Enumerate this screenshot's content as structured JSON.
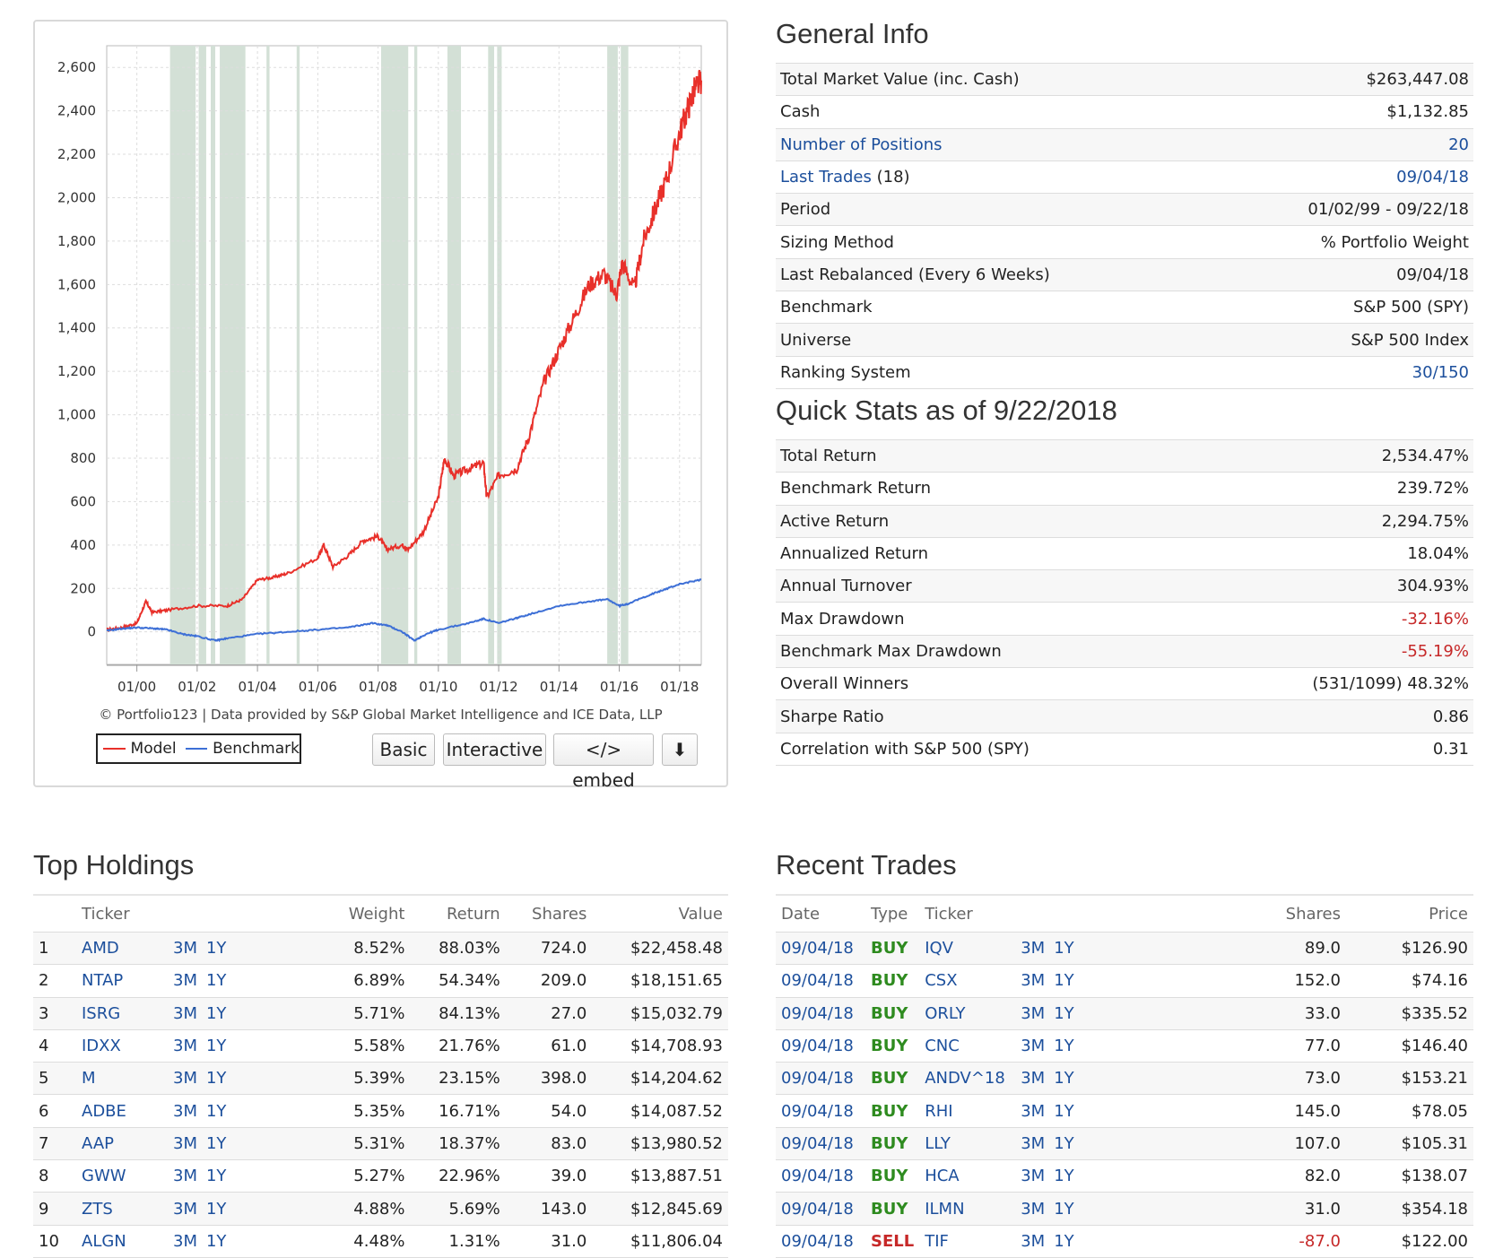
{
  "chart": {
    "copyright": "© Portfolio123 | Data provided by S&P Global Market Intelligence and ICE Data, LLP",
    "legend": {
      "model_label": "Model",
      "benchmark_label": "Benchmark"
    },
    "buttons": {
      "basic": "Basic",
      "interactive": "Interactive",
      "embed": "</> embed",
      "download": "⬇"
    },
    "colors": {
      "model": "#e8302a",
      "benchmark": "#3d6fd6",
      "shade": "#d3e0d6"
    }
  },
  "chart_data": {
    "type": "line",
    "y_ticks": [
      "2,600",
      "2,400",
      "2,200",
      "2,000",
      "1,800",
      "1,600",
      "1,400",
      "1,200",
      "1,000",
      "800",
      "600",
      "400",
      "200",
      "0"
    ],
    "x_ticks": [
      "01/00",
      "01/02",
      "01/04",
      "01/06",
      "01/08",
      "01/10",
      "01/12",
      "01/14",
      "01/16",
      "01/18"
    ],
    "ylim": [
      -150,
      2700
    ],
    "xlim": [
      1999.0,
      2018.72
    ],
    "shaded_periods": [
      [
        2001.1,
        2001.95
      ],
      [
        2002.05,
        2002.3
      ],
      [
        2002.45,
        2002.6
      ],
      [
        2002.75,
        2003.6
      ],
      [
        2004.3,
        2004.4
      ],
      [
        2005.3,
        2005.4
      ],
      [
        2008.1,
        2009.0
      ],
      [
        2009.2,
        2009.3
      ],
      [
        2010.3,
        2010.75
      ],
      [
        2011.65,
        2011.85
      ],
      [
        2011.95,
        2012.1
      ],
      [
        2015.6,
        2015.95
      ],
      [
        2016.05,
        2016.3
      ]
    ],
    "series": [
      {
        "name": "Model",
        "points": [
          [
            1999.0,
            10
          ],
          [
            1999.5,
            20
          ],
          [
            2000.0,
            40
          ],
          [
            2000.3,
            140
          ],
          [
            2000.5,
            90
          ],
          [
            2001.0,
            100
          ],
          [
            2002.0,
            120
          ],
          [
            2003.0,
            120
          ],
          [
            2003.5,
            150
          ],
          [
            2004.0,
            240
          ],
          [
            2004.5,
            250
          ],
          [
            2005.0,
            270
          ],
          [
            2006.0,
            340
          ],
          [
            2006.2,
            400
          ],
          [
            2006.5,
            300
          ],
          [
            2007.0,
            350
          ],
          [
            2007.5,
            420
          ],
          [
            2008.0,
            440
          ],
          [
            2008.3,
            380
          ],
          [
            2008.8,
            400
          ],
          [
            2009.0,
            380
          ],
          [
            2009.5,
            460
          ],
          [
            2010.0,
            620
          ],
          [
            2010.2,
            800
          ],
          [
            2010.5,
            720
          ],
          [
            2011.0,
            750
          ],
          [
            2011.5,
            780
          ],
          [
            2011.6,
            620
          ],
          [
            2012.0,
            720
          ],
          [
            2012.6,
            750
          ],
          [
            2013.0,
            900
          ],
          [
            2013.5,
            1150
          ],
          [
            2014.0,
            1300
          ],
          [
            2014.5,
            1450
          ],
          [
            2015.0,
            1600
          ],
          [
            2015.5,
            1650
          ],
          [
            2015.9,
            1550
          ],
          [
            2016.1,
            1700
          ],
          [
            2016.5,
            1580
          ],
          [
            2016.8,
            1800
          ],
          [
            2017.2,
            1950
          ],
          [
            2017.6,
            2100
          ],
          [
            2018.0,
            2300
          ],
          [
            2018.3,
            2420
          ],
          [
            2018.5,
            2500
          ],
          [
            2018.72,
            2540
          ]
        ]
      },
      {
        "name": "Benchmark",
        "points": [
          [
            1999.0,
            5
          ],
          [
            1999.5,
            15
          ],
          [
            2000.0,
            20
          ],
          [
            2000.6,
            15
          ],
          [
            2001.0,
            10
          ],
          [
            2001.5,
            -10
          ],
          [
            2002.0,
            -20
          ],
          [
            2002.6,
            -40
          ],
          [
            2003.0,
            -30
          ],
          [
            2004.0,
            -10
          ],
          [
            2005.0,
            0
          ],
          [
            2006.0,
            10
          ],
          [
            2007.0,
            20
          ],
          [
            2007.8,
            40
          ],
          [
            2008.3,
            30
          ],
          [
            2008.8,
            0
          ],
          [
            2009.2,
            -40
          ],
          [
            2009.6,
            -10
          ],
          [
            2010.0,
            10
          ],
          [
            2011.0,
            40
          ],
          [
            2011.5,
            60
          ],
          [
            2012.0,
            40
          ],
          [
            2012.5,
            60
          ],
          [
            2013.0,
            80
          ],
          [
            2014.0,
            120
          ],
          [
            2015.0,
            140
          ],
          [
            2015.6,
            150
          ],
          [
            2016.0,
            120
          ],
          [
            2016.3,
            130
          ],
          [
            2017.0,
            170
          ],
          [
            2017.6,
            200
          ],
          [
            2018.0,
            220
          ],
          [
            2018.72,
            240
          ]
        ]
      }
    ]
  },
  "general_info": {
    "title": "General Info",
    "rows": [
      {
        "label": "Total Market Value (inc. Cash)",
        "value": "$263,447.08"
      },
      {
        "label": "Cash",
        "value": "$1,132.85"
      },
      {
        "label": "Number of Positions",
        "value": "20"
      },
      {
        "label": "Last Trades",
        "suffix": "(18)",
        "value": "09/04/18"
      },
      {
        "label": "Period",
        "value": "01/02/99 - 09/22/18"
      },
      {
        "label": "Sizing Method",
        "value": "% Portfolio Weight"
      },
      {
        "label": "Last Rebalanced (Every 6 Weeks)",
        "value": "09/04/18"
      },
      {
        "label": "Benchmark",
        "value": "S&P 500 (SPY)"
      },
      {
        "label": "Universe",
        "value": "S&P 500 Index"
      },
      {
        "label": "Ranking System",
        "value": "30/150"
      }
    ]
  },
  "quick_stats": {
    "title": "Quick Stats as of 9/22/2018",
    "rows": [
      {
        "label": "Total Return",
        "value": "2,534.47%"
      },
      {
        "label": "Benchmark Return",
        "value": "239.72%"
      },
      {
        "label": "Active Return",
        "value": "2,294.75%"
      },
      {
        "label": "Annualized Return",
        "value": "18.04%"
      },
      {
        "label": "Annual Turnover",
        "value": "304.93%"
      },
      {
        "label": "Max Drawdown",
        "value": "-32.16%"
      },
      {
        "label": "Benchmark Max Drawdown",
        "value": "-55.19%"
      },
      {
        "label": "Overall Winners",
        "value": "(531/1099) 48.32%"
      },
      {
        "label": "Sharpe Ratio",
        "value": "0.86"
      },
      {
        "label": "Correlation with S&P 500 (SPY)",
        "value": "0.31"
      }
    ]
  },
  "top_holdings": {
    "title": "Top Holdings",
    "headers": {
      "ticker": "Ticker",
      "weight": "Weight",
      "return": "Return",
      "shares": "Shares",
      "value": "Value"
    },
    "tf": {
      "m3": "3M",
      "y1": "1Y"
    },
    "rows": [
      {
        "n": "1",
        "ticker": "AMD",
        "weight": "8.52%",
        "ret": "88.03%",
        "shares": "724.0",
        "value": "$22,458.48"
      },
      {
        "n": "2",
        "ticker": "NTAP",
        "weight": "6.89%",
        "ret": "54.34%",
        "shares": "209.0",
        "value": "$18,151.65"
      },
      {
        "n": "3",
        "ticker": "ISRG",
        "weight": "5.71%",
        "ret": "84.13%",
        "shares": "27.0",
        "value": "$15,032.79"
      },
      {
        "n": "4",
        "ticker": "IDXX",
        "weight": "5.58%",
        "ret": "21.76%",
        "shares": "61.0",
        "value": "$14,708.93"
      },
      {
        "n": "5",
        "ticker": "M",
        "weight": "5.39%",
        "ret": "23.15%",
        "shares": "398.0",
        "value": "$14,204.62"
      },
      {
        "n": "6",
        "ticker": "ADBE",
        "weight": "5.35%",
        "ret": "16.71%",
        "shares": "54.0",
        "value": "$14,087.52"
      },
      {
        "n": "7",
        "ticker": "AAP",
        "weight": "5.31%",
        "ret": "18.37%",
        "shares": "83.0",
        "value": "$13,980.52"
      },
      {
        "n": "8",
        "ticker": "GWW",
        "weight": "5.27%",
        "ret": "22.96%",
        "shares": "39.0",
        "value": "$13,887.51"
      },
      {
        "n": "9",
        "ticker": "ZTS",
        "weight": "4.88%",
        "ret": "5.69%",
        "shares": "143.0",
        "value": "$12,845.69"
      },
      {
        "n": "10",
        "ticker": "ALGN",
        "weight": "4.48%",
        "ret": "1.31%",
        "shares": "31.0",
        "value": "$11,806.04"
      }
    ]
  },
  "recent_trades": {
    "title": "Recent Trades",
    "headers": {
      "date": "Date",
      "type": "Type",
      "ticker": "Ticker",
      "shares": "Shares",
      "price": "Price"
    },
    "tf": {
      "m3": "3M",
      "y1": "1Y"
    },
    "rows": [
      {
        "date": "09/04/18",
        "type": "BUY",
        "ticker": "IQV",
        "shares": "89.0",
        "price": "$126.90"
      },
      {
        "date": "09/04/18",
        "type": "BUY",
        "ticker": "CSX",
        "shares": "152.0",
        "price": "$74.16"
      },
      {
        "date": "09/04/18",
        "type": "BUY",
        "ticker": "ORLY",
        "shares": "33.0",
        "price": "$335.52"
      },
      {
        "date": "09/04/18",
        "type": "BUY",
        "ticker": "CNC",
        "shares": "77.0",
        "price": "$146.40"
      },
      {
        "date": "09/04/18",
        "type": "BUY",
        "ticker": "ANDV^18",
        "shares": "73.0",
        "price": "$153.21"
      },
      {
        "date": "09/04/18",
        "type": "BUY",
        "ticker": "RHI",
        "shares": "145.0",
        "price": "$78.05"
      },
      {
        "date": "09/04/18",
        "type": "BUY",
        "ticker": "LLY",
        "shares": "107.0",
        "price": "$105.31"
      },
      {
        "date": "09/04/18",
        "type": "BUY",
        "ticker": "HCA",
        "shares": "82.0",
        "price": "$138.07"
      },
      {
        "date": "09/04/18",
        "type": "BUY",
        "ticker": "ILMN",
        "shares": "31.0",
        "price": "$354.18"
      },
      {
        "date": "09/04/18",
        "type": "SELL",
        "ticker": "TIF",
        "shares": "-87.0",
        "price": "$122.00"
      }
    ]
  }
}
